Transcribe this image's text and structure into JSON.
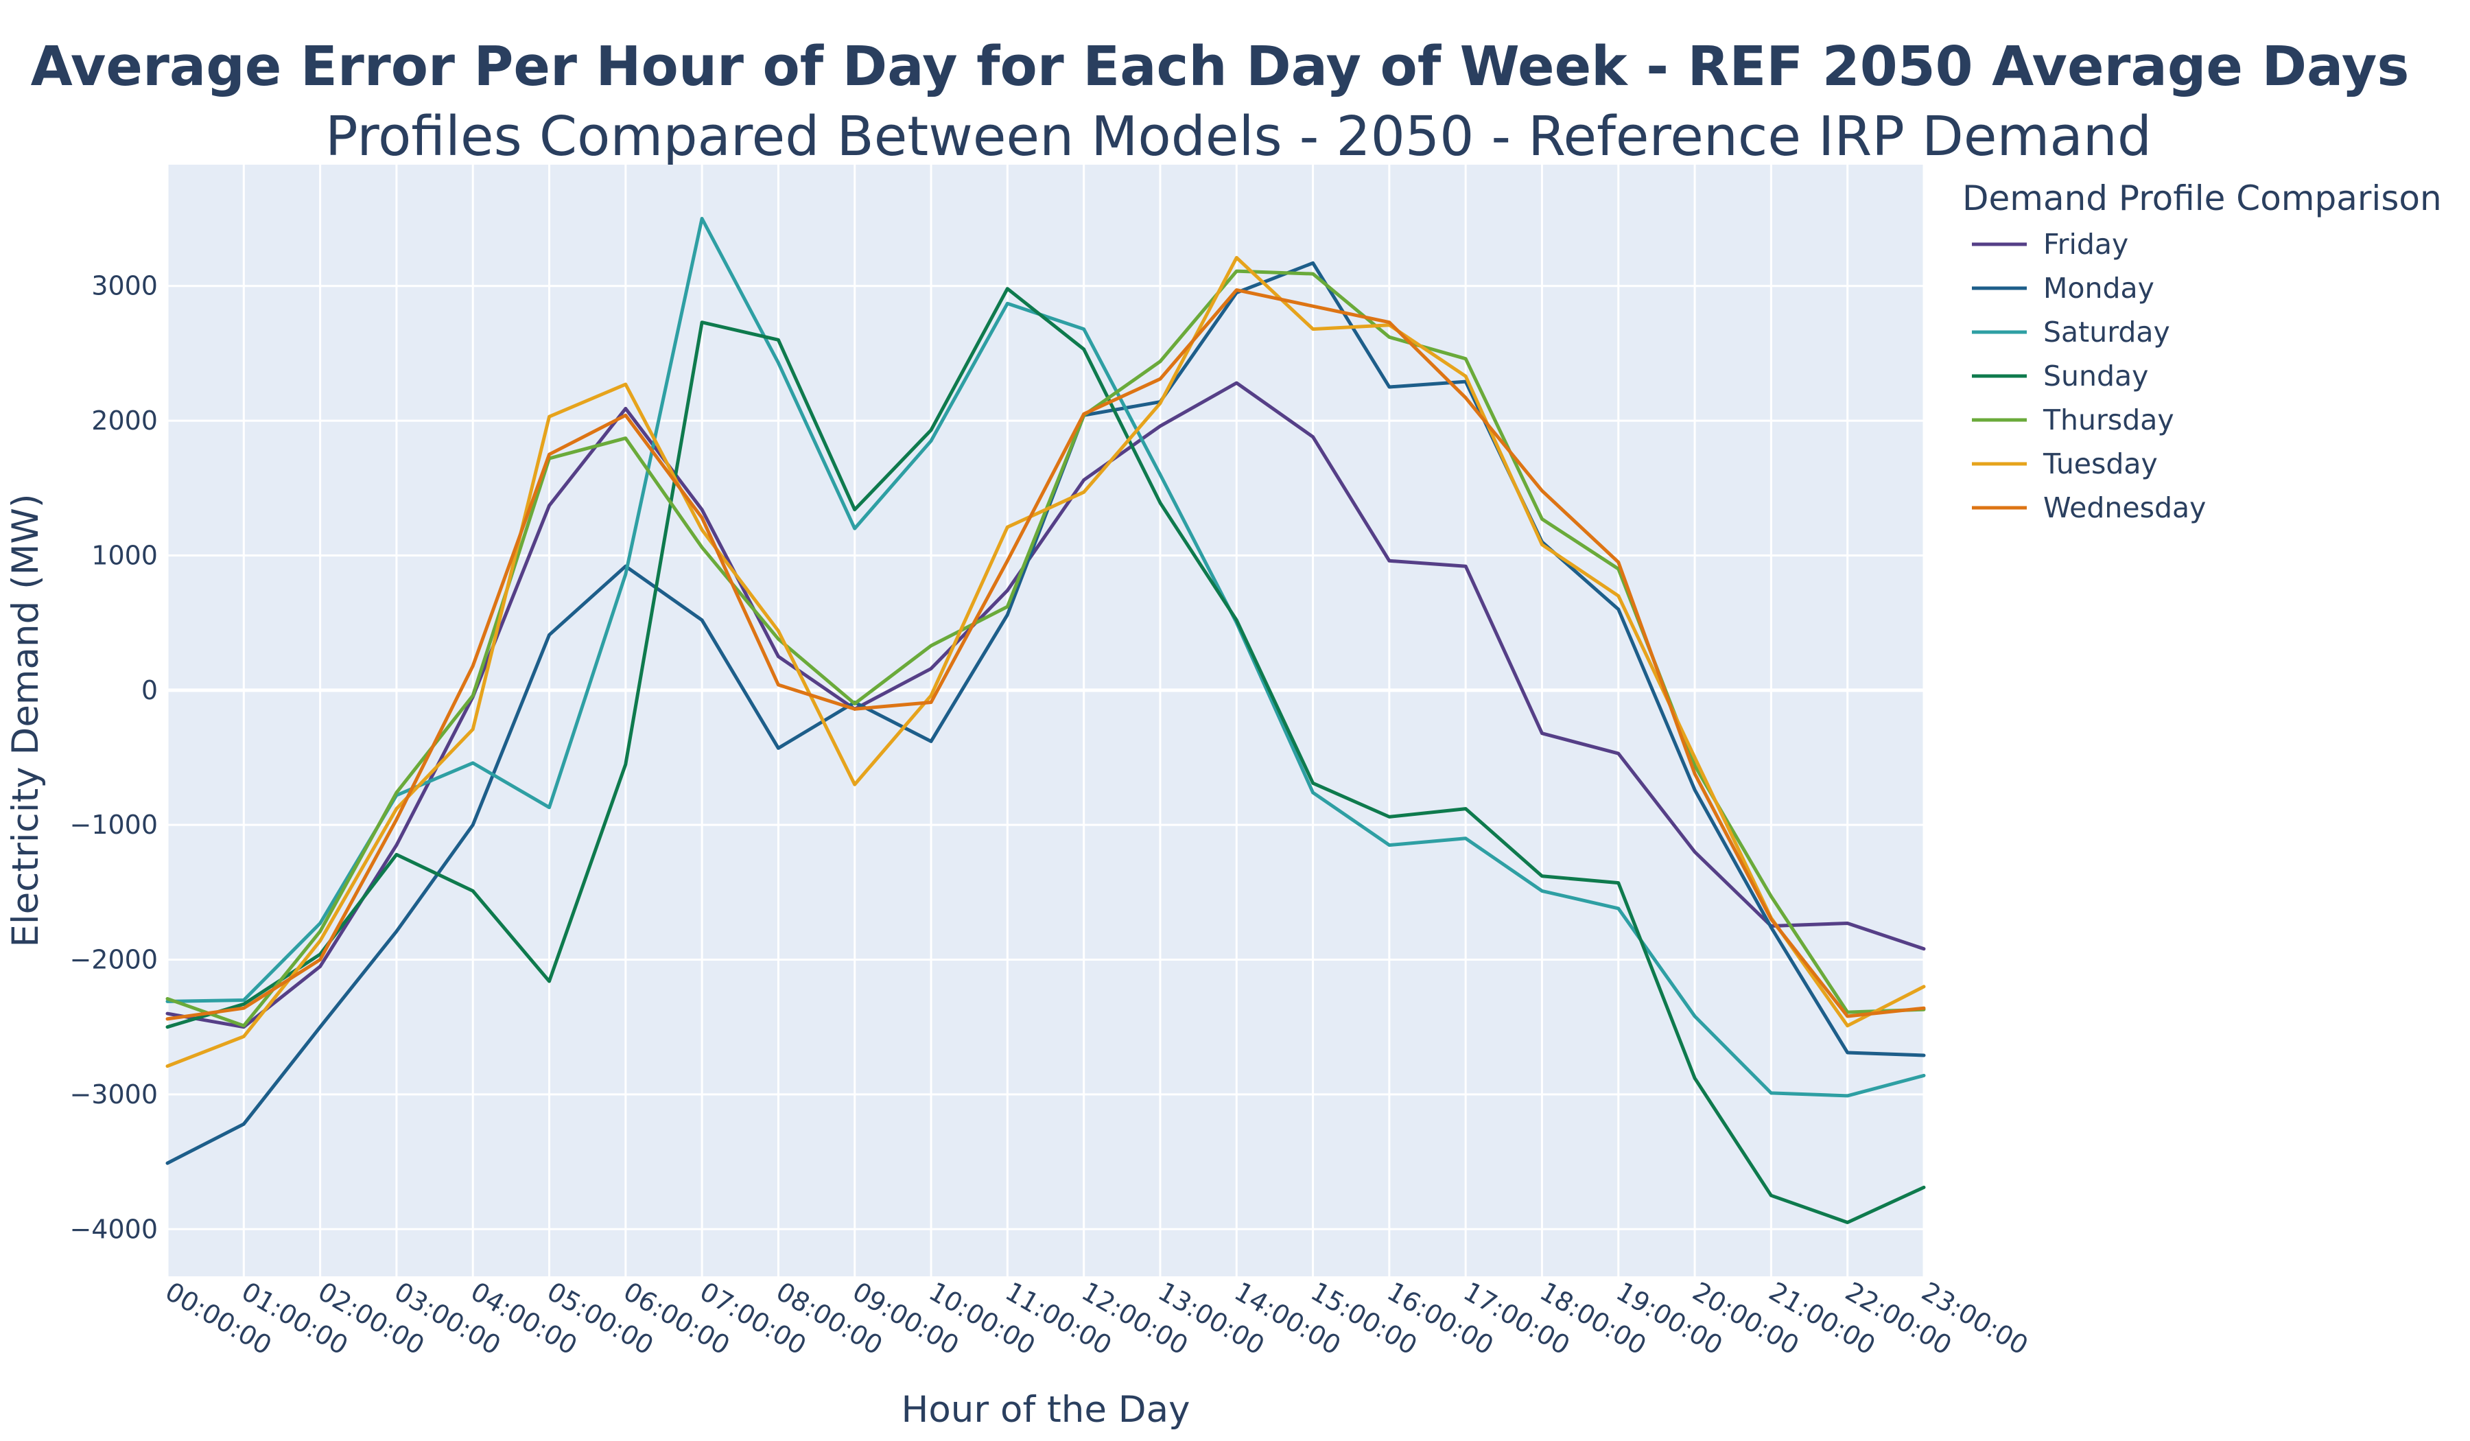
{
  "chart_data": {
    "type": "line",
    "title": "Average Error Per Hour of Day for Each Day of Week - REF 2050 Average Days",
    "subtitle": "Profiles Compared Between Models - 2050 - Reference IRP Demand",
    "xlabel": "Hour of the Day",
    "ylabel": "Electricity Demand (MW)",
    "ylim": [
      -4350,
      3900
    ],
    "yticks": [
      -4000,
      -3000,
      -2000,
      -1000,
      0,
      1000,
      2000,
      3000
    ],
    "ytick_labels": [
      "−4000",
      "−3000",
      "−2000",
      "−1000",
      "0",
      "1000",
      "2000",
      "3000"
    ],
    "grid": true,
    "x": [
      "00:00:00",
      "01:00:00",
      "02:00:00",
      "03:00:00",
      "04:00:00",
      "05:00:00",
      "06:00:00",
      "07:00:00",
      "08:00:00",
      "09:00:00",
      "10:00:00",
      "11:00:00",
      "12:00:00",
      "13:00:00",
      "14:00:00",
      "15:00:00",
      "16:00:00",
      "17:00:00",
      "18:00:00",
      "19:00:00",
      "20:00:00",
      "21:00:00",
      "22:00:00",
      "23:00:00"
    ],
    "legend": {
      "title": "Demand Profile Comparison",
      "placement": "right"
    },
    "series": [
      {
        "name": "Friday",
        "color": "#553f87",
        "values": [
          -2400,
          -2500,
          -2050,
          -1150,
          -50,
          1370,
          2090,
          1340,
          250,
          -140,
          160,
          740,
          1560,
          1960,
          2280,
          1880,
          960,
          920,
          -320,
          -470,
          -1200,
          -1750,
          -1730,
          -1920
        ]
      },
      {
        "name": "Monday",
        "color": "#1d5e8a",
        "values": [
          -3510,
          -3220,
          -2500,
          -1790,
          -1000,
          410,
          920,
          520,
          -430,
          -90,
          -380,
          560,
          2040,
          2140,
          2950,
          3170,
          2250,
          2290,
          1100,
          600,
          -740,
          -1760,
          -2690,
          -2710
        ]
      },
      {
        "name": "Saturday",
        "color": "#2e9fa3",
        "values": [
          -2310,
          -2300,
          -1730,
          -780,
          -540,
          -870,
          860,
          3500,
          2430,
          1200,
          1850,
          2870,
          2680,
          1600,
          500,
          -760,
          -1150,
          -1100,
          -1490,
          -1620,
          -2420,
          -2990,
          -3010,
          -2860
        ]
      },
      {
        "name": "Sunday",
        "color": "#0e7a4d",
        "values": [
          -2500,
          -2330,
          -1960,
          -1220,
          -1490,
          -2160,
          -550,
          2730,
          2600,
          1340,
          1930,
          2980,
          2530,
          1390,
          520,
          -690,
          -940,
          -880,
          -1380,
          -1430,
          -2880,
          -3750,
          -3950,
          -3690
        ]
      },
      {
        "name": "Thursday",
        "color": "#6aaa3a",
        "values": [
          -2290,
          -2490,
          -1790,
          -760,
          -40,
          1720,
          1870,
          1060,
          380,
          -100,
          330,
          620,
          2040,
          2440,
          3110,
          3090,
          2620,
          2460,
          1270,
          900,
          -560,
          -1530,
          -2390,
          -2370
        ]
      },
      {
        "name": "Tuesday",
        "color": "#e6a31c",
        "values": [
          -2790,
          -2570,
          -1860,
          -880,
          -290,
          2030,
          2270,
          1190,
          440,
          -700,
          -40,
          1210,
          1470,
          2130,
          3210,
          2680,
          2710,
          2330,
          1080,
          700,
          -500,
          -1690,
          -2490,
          -2200
        ]
      },
      {
        "name": "Wednesday",
        "color": "#dd7414",
        "values": [
          -2440,
          -2360,
          -2000,
          -960,
          180,
          1750,
          2040,
          1280,
          40,
          -140,
          -90,
          960,
          2050,
          2310,
          2970,
          2850,
          2730,
          2170,
          1480,
          950,
          -620,
          -1700,
          -2420,
          -2360
        ]
      }
    ]
  }
}
